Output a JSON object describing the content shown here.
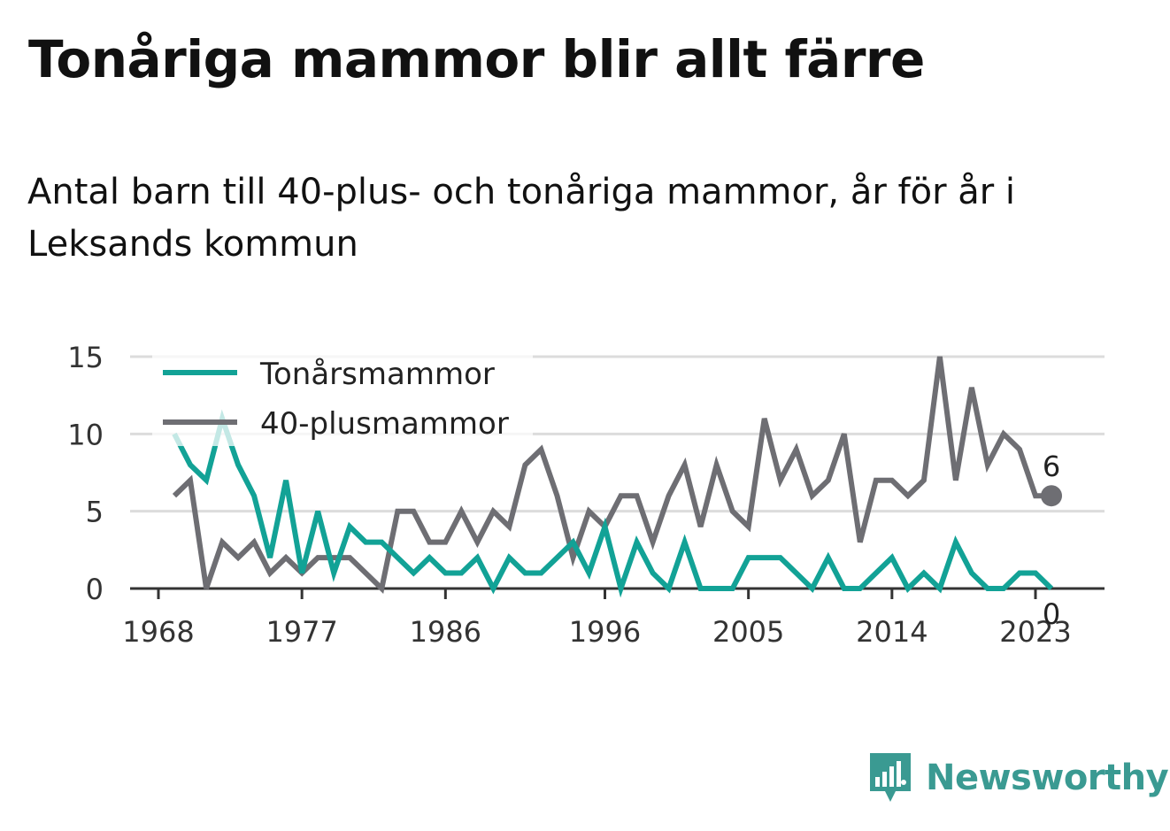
{
  "title": "Tonåriga mammor blir allt färre",
  "subtitle": "Antal barn till 40-plus- och tonåriga mammor, år för år i Leksands kommun",
  "brand": {
    "name": "Newsworthy",
    "logo_icon": "bar-chart-speech-bubble-icon",
    "color": "#3a9a92"
  },
  "chart_data": {
    "type": "line",
    "x": [
      1969,
      1970,
      1971,
      1972,
      1973,
      1974,
      1975,
      1976,
      1977,
      1978,
      1979,
      1980,
      1981,
      1982,
      1983,
      1984,
      1985,
      1986,
      1987,
      1988,
      1989,
      1990,
      1991,
      1992,
      1993,
      1994,
      1995,
      1996,
      1997,
      1998,
      1999,
      2000,
      2001,
      2002,
      2003,
      2004,
      2005,
      2006,
      2007,
      2008,
      2009,
      2010,
      2011,
      2012,
      2013,
      2014,
      2015,
      2016,
      2017,
      2018,
      2019,
      2020,
      2021,
      2022,
      2023,
      2024
    ],
    "series": [
      {
        "name": "Tonårsmammor",
        "color": "#12a296",
        "values": [
          10,
          8,
          7,
          11,
          8,
          6,
          2,
          7,
          1,
          5,
          1,
          4,
          3,
          3,
          2,
          1,
          2,
          1,
          1,
          2,
          0,
          2,
          1,
          1,
          2,
          3,
          1,
          4,
          0,
          3,
          1,
          0,
          3,
          0,
          0,
          0,
          2,
          2,
          2,
          1,
          0,
          2,
          0,
          0,
          1,
          2,
          0,
          1,
          0,
          3,
          1,
          0,
          0,
          1,
          1,
          0
        ]
      },
      {
        "name": "40-plusmammor",
        "color": "#6e6e73",
        "values": [
          6,
          7,
          0,
          3,
          2,
          3,
          1,
          2,
          1,
          2,
          2,
          2,
          1,
          0,
          5,
          5,
          3,
          3,
          5,
          3,
          5,
          4,
          8,
          9,
          6,
          2,
          5,
          4,
          6,
          6,
          3,
          6,
          8,
          4,
          8,
          5,
          4,
          11,
          7,
          9,
          6,
          7,
          10,
          3,
          7,
          7,
          6,
          7,
          15,
          7,
          13,
          8,
          10,
          9,
          6,
          6
        ]
      }
    ],
    "xticks": [
      "1968",
      "1977",
      "1986",
      "1996",
      "2005",
      "2014",
      "2023"
    ],
    "yticks": [
      "0",
      "5",
      "10",
      "15"
    ],
    "ylim": [
      0,
      15
    ],
    "xlim": [
      1968,
      2025
    ],
    "end_labels": {
      "Tonårsmammor": "0",
      "40-plusmammor": "6"
    },
    "legend_position": "top-left",
    "grid": true,
    "xlabel": "",
    "ylabel": ""
  }
}
